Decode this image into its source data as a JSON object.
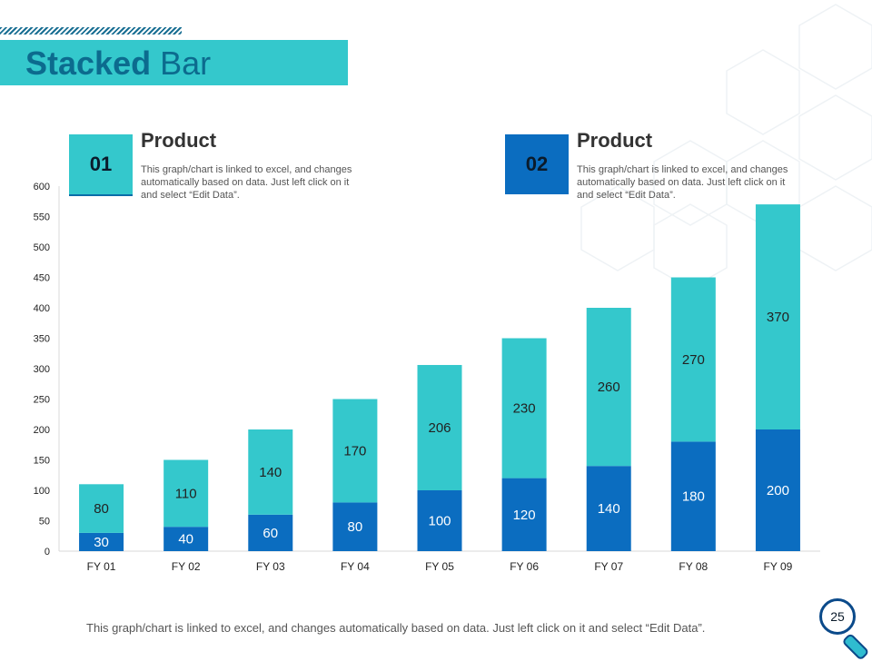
{
  "slide": {
    "title_bold": "Stacked",
    "title_rest": " Bar",
    "page_number": "25",
    "footer_note": "This graph/chart is linked to excel, and changes automatically based on data. Just left click on it and select “Edit Data”."
  },
  "legend": [
    {
      "number": "01",
      "title": "Product",
      "description": "This graph/chart is linked to excel, and changes automatically based on data. Just left click on it and select “Edit Data”.",
      "color": "#34c8cc"
    },
    {
      "number": "02",
      "title": "Product",
      "description": "This graph/chart is linked to excel, and changes automatically based on data. Just left click on it and select “Edit Data”.",
      "color": "#0b6dc0"
    }
  ],
  "chart_data": {
    "type": "bar",
    "stacked": true,
    "categories": [
      "FY 01",
      "FY 02",
      "FY 03",
      "FY 04",
      "FY 05",
      "FY 06",
      "FY 07",
      "FY 08",
      "FY 09"
    ],
    "series": [
      {
        "values": [
          30,
          40,
          60,
          80,
          100,
          120,
          140,
          180,
          200
        ],
        "color": "#0b6dc0",
        "label_color": "#ffffff"
      },
      {
        "values": [
          80,
          110,
          140,
          170,
          206,
          230,
          260,
          270,
          370
        ],
        "color": "#34c8cc",
        "label_color": "#222222"
      }
    ],
    "ylim": [
      0,
      600
    ],
    "yticks": [
      0,
      50,
      100,
      150,
      200,
      250,
      300,
      350,
      400,
      450,
      500,
      550,
      600
    ],
    "grid": false
  }
}
